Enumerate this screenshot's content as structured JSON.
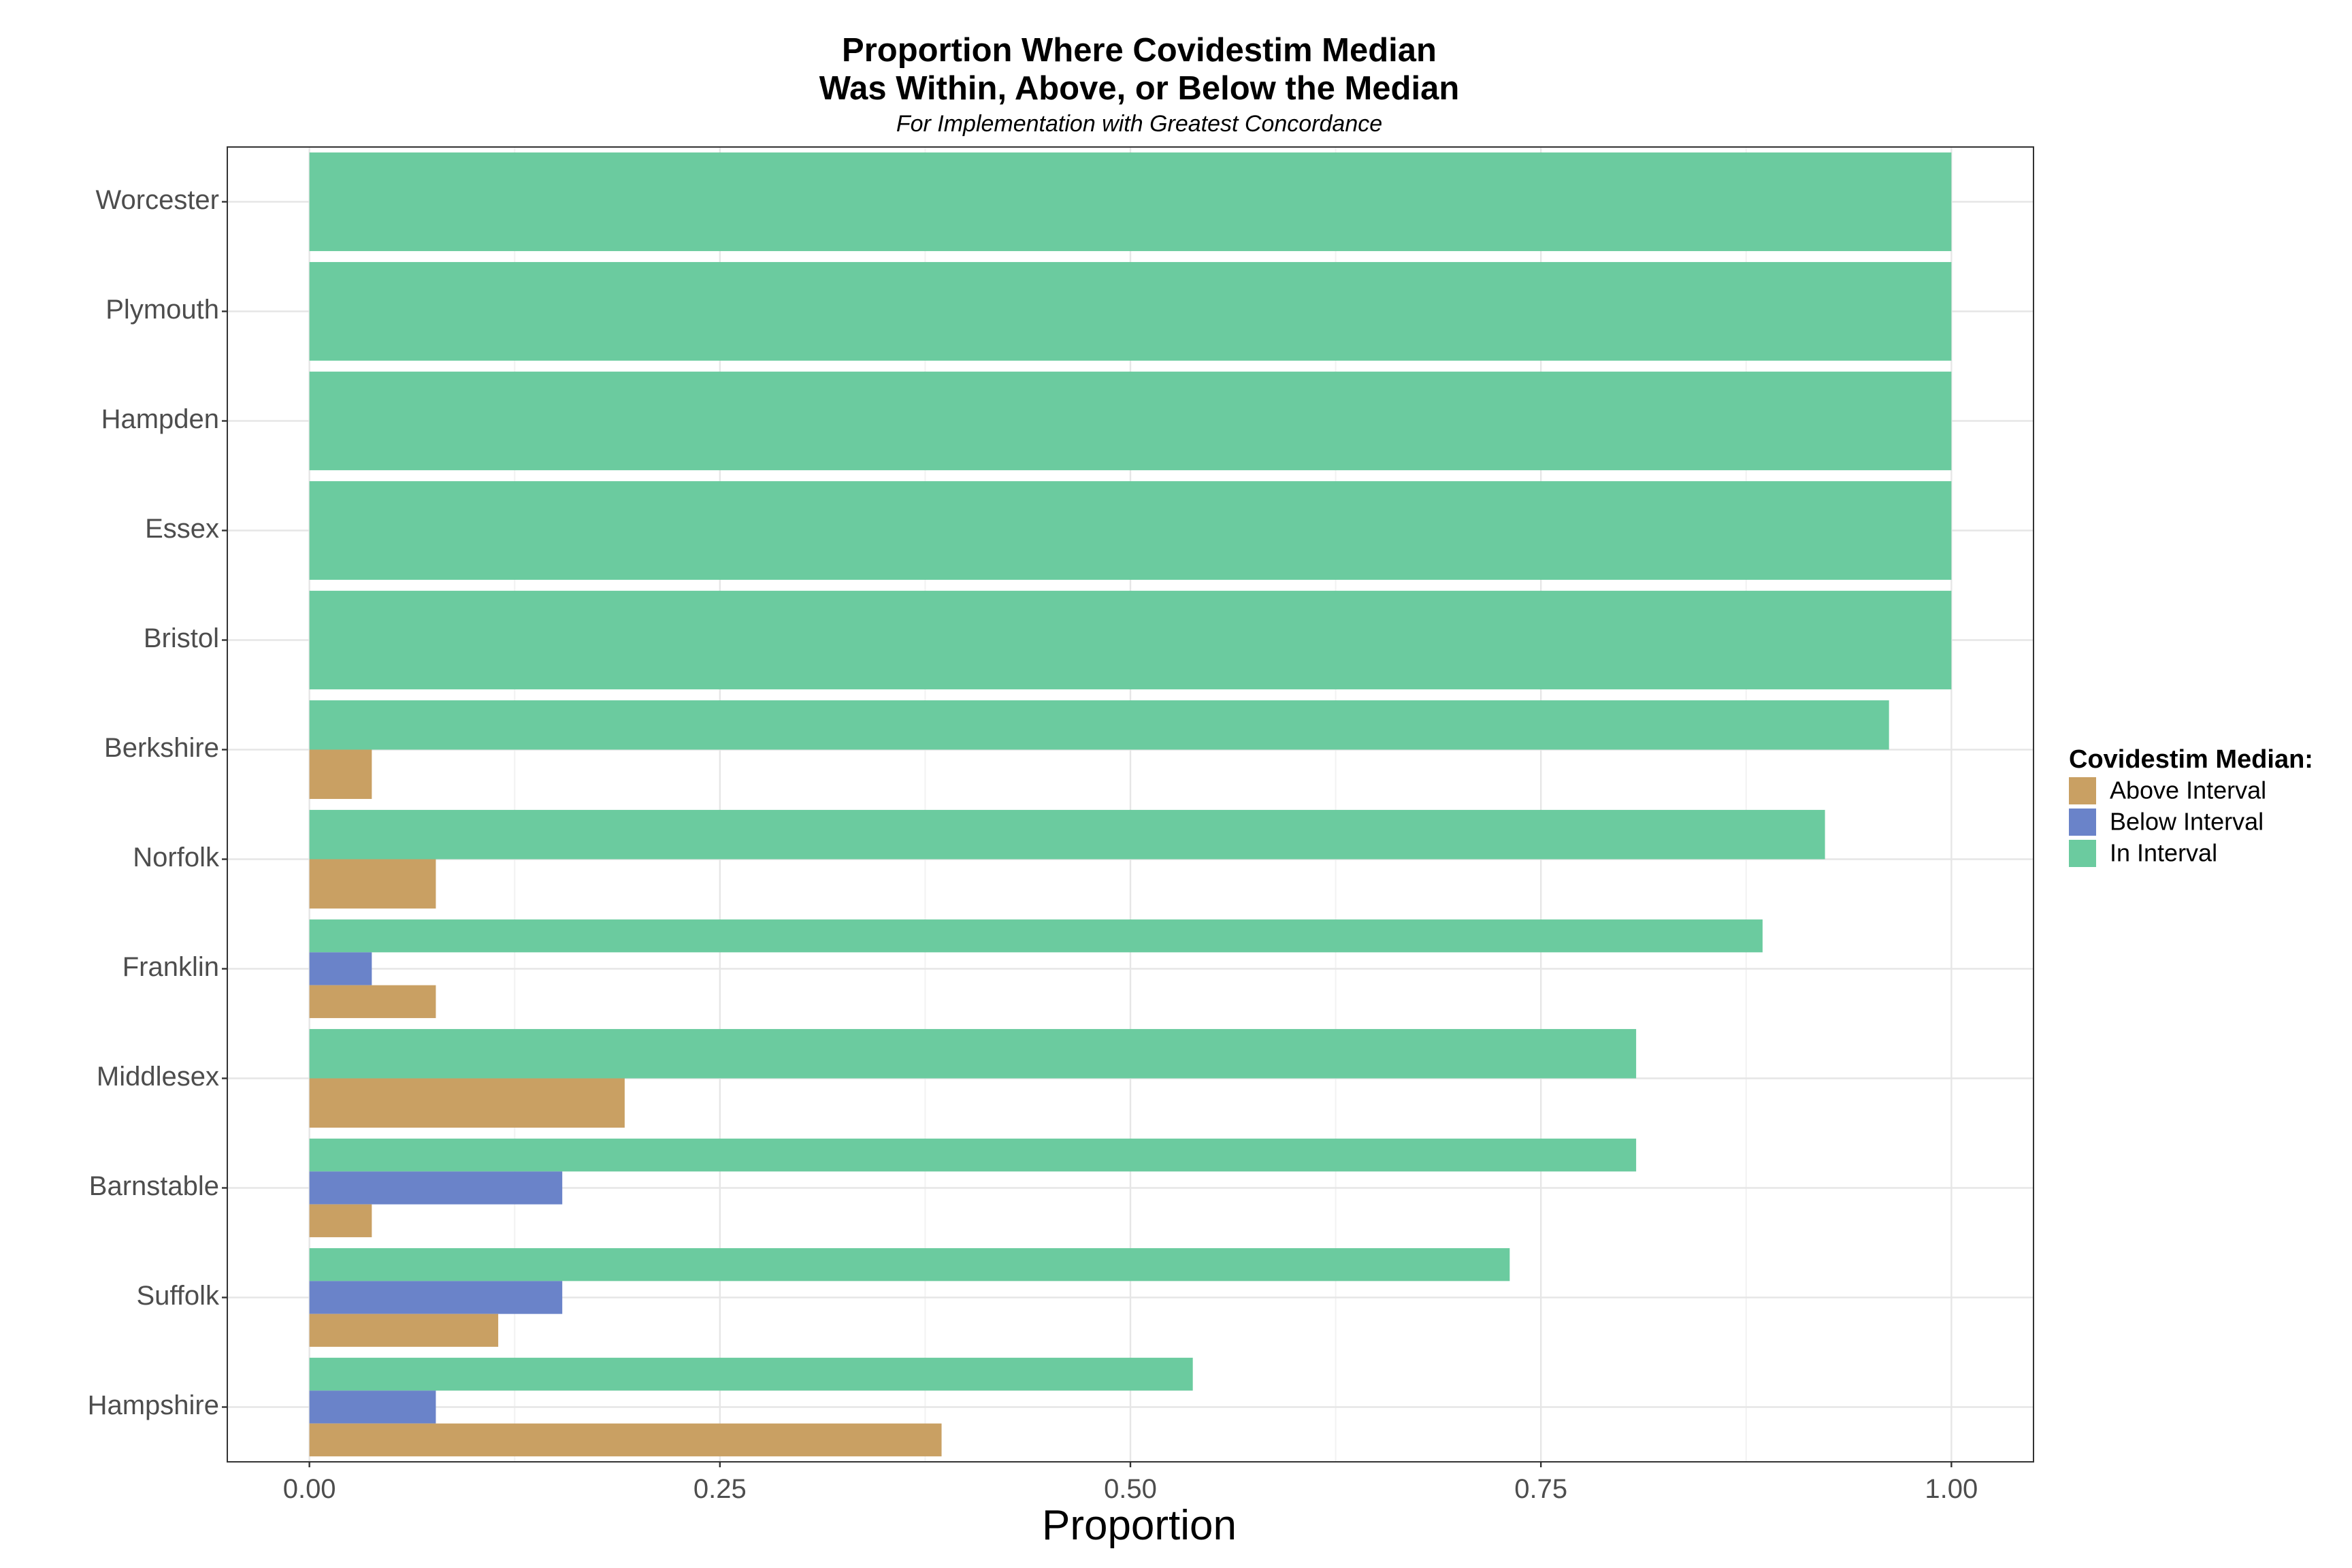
{
  "chart_data": {
    "type": "bar",
    "orientation": "horizontal",
    "title": "Proportion Where Covidestim Median",
    "title_line2": "Was Within, Above, or Below the Median",
    "subtitle": "For Implementation with Greatest Concordance",
    "xlabel": "Proportion",
    "ylabel": "",
    "xlim": [
      -0.05,
      1.05
    ],
    "xticks": [
      0,
      0.25,
      0.5,
      0.75,
      1
    ],
    "xtick_labels": [
      "0.00",
      "0.25",
      "0.50",
      "0.75",
      "1.00"
    ],
    "grid": true,
    "legend_position": "right",
    "legend_title": "Covidestim Median:",
    "categories": [
      "Worcester",
      "Plymouth",
      "Hampden",
      "Essex",
      "Bristol",
      "Berkshire",
      "Norfolk",
      "Franklin",
      "Middlesex",
      "Barnstable",
      "Suffolk",
      "Hampshire"
    ],
    "series": [
      {
        "name": "Above Interval",
        "color": "#C9A063",
        "values": [
          0,
          0,
          0,
          0,
          0,
          0.038,
          0.077,
          0.077,
          0.192,
          0.038,
          0.115,
          0.385
        ]
      },
      {
        "name": "Below Interval",
        "color": "#6A83C9",
        "values": [
          0,
          0,
          0,
          0,
          0,
          0,
          0,
          0.038,
          0,
          0.154,
          0.154,
          0.077
        ]
      },
      {
        "name": "In Interval",
        "color": "#6BCB9F",
        "values": [
          1,
          1,
          1,
          1,
          1,
          0.962,
          0.923,
          0.885,
          0.808,
          0.808,
          0.731,
          0.538
        ]
      }
    ]
  }
}
